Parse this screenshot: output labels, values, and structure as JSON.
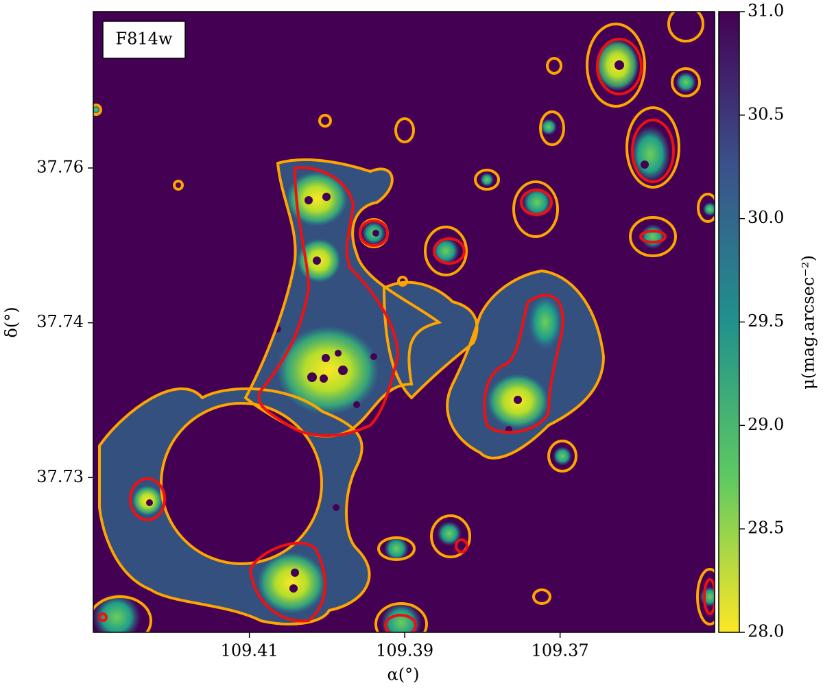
{
  "chart_data": {
    "type": "image",
    "annotation": "F814w",
    "xlabel": "α(°)",
    "ylabel": "δ(°)",
    "xlim": [
      109.4301,
      109.3501
    ],
    "xticks": [
      109.41,
      109.39,
      109.37
    ],
    "ylim": [
      37.725,
      37.7651
    ],
    "yticks": [
      {
        "value": 37.755,
        "label": "37.76"
      },
      {
        "value": 37.745,
        "label": "37.74"
      },
      {
        "value": 37.735,
        "label": "37.73"
      }
    ],
    "contour_colors": [
      "#ffa500",
      "#ee1111"
    ],
    "colorbar": {
      "label": "μ(mag.arcsec⁻²)",
      "lim": [
        28,
        31
      ],
      "ticks": [
        {
          "value": 31,
          "label": "31.0"
        },
        {
          "value": 30.5,
          "label": "30.5"
        },
        {
          "value": 30,
          "label": "30.0"
        },
        {
          "value": 29.5,
          "label": "29.5"
        },
        {
          "value": 29,
          "label": "29.0"
        },
        {
          "value": 28.5,
          "label": "28.5"
        },
        {
          "value": 28,
          "label": "28.0"
        }
      ]
    }
  }
}
